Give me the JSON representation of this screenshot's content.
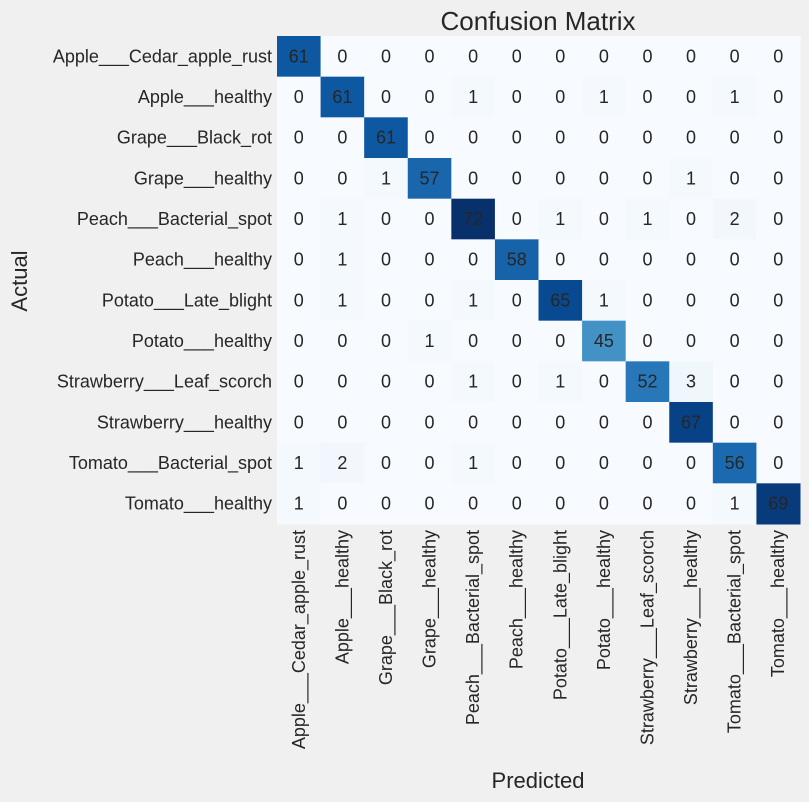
{
  "chart_data": {
    "type": "heatmap",
    "title": "Confusion Matrix",
    "xlabel": "Predicted",
    "ylabel": "Actual",
    "row_labels": [
      "Apple___Cedar_apple_rust",
      "Apple___healthy",
      "Grape___Black_rot",
      "Grape___healthy",
      "Peach___Bacterial_spot",
      "Peach___healthy",
      "Potato___Late_blight",
      "Potato___healthy",
      "Strawberry___Leaf_scorch",
      "Strawberry___healthy",
      "Tomato___Bacterial_spot",
      "Tomato___healthy"
    ],
    "col_labels": [
      "Apple___Cedar_apple_rust",
      "Apple___healthy",
      "Grape___Black_rot",
      "Grape___healthy",
      "Peach___Bacterial_spot",
      "Peach___healthy",
      "Potato___Late_blight",
      "Potato___healthy",
      "Strawberry___Leaf_scorch",
      "Strawberry___healthy",
      "Tomato___Bacterial_spot",
      "Tomato___healthy"
    ],
    "values": [
      [
        61,
        0,
        0,
        0,
        0,
        0,
        0,
        0,
        0,
        0,
        0,
        0
      ],
      [
        0,
        61,
        0,
        0,
        1,
        0,
        0,
        1,
        0,
        0,
        1,
        0
      ],
      [
        0,
        0,
        61,
        0,
        0,
        0,
        0,
        0,
        0,
        0,
        0,
        0
      ],
      [
        0,
        0,
        1,
        57,
        0,
        0,
        0,
        0,
        0,
        1,
        0,
        0
      ],
      [
        0,
        1,
        0,
        0,
        72,
        0,
        1,
        0,
        1,
        0,
        2,
        0
      ],
      [
        0,
        1,
        0,
        0,
        0,
        58,
        0,
        0,
        0,
        0,
        0,
        0
      ],
      [
        0,
        1,
        0,
        0,
        1,
        0,
        65,
        1,
        0,
        0,
        0,
        0
      ],
      [
        0,
        0,
        0,
        1,
        0,
        0,
        0,
        45,
        0,
        0,
        0,
        0
      ],
      [
        0,
        0,
        0,
        0,
        1,
        0,
        1,
        0,
        52,
        3,
        0,
        0
      ],
      [
        0,
        0,
        0,
        0,
        0,
        0,
        0,
        0,
        0,
        67,
        0,
        0
      ],
      [
        1,
        2,
        0,
        0,
        1,
        0,
        0,
        0,
        0,
        0,
        56,
        0
      ],
      [
        1,
        0,
        0,
        0,
        0,
        0,
        0,
        0,
        0,
        0,
        1,
        69
      ]
    ],
    "colormap": "Blues",
    "grid": false,
    "colorbar": false
  },
  "colors": {
    "background": "#f0f0f0",
    "low": "#f7fbff",
    "high": "#08306b",
    "text_dark": "#262626",
    "text_light": "#ffffff"
  }
}
